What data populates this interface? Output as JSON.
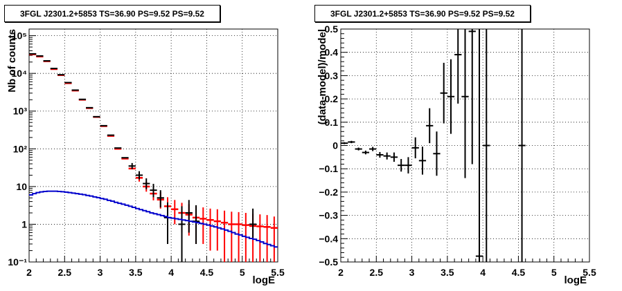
{
  "chart_data": [
    {
      "type": "line",
      "title": "3FGL J2301.2+5853 TS=36.90 PS=9.52 PS=9.52",
      "xlabel": "logE",
      "ylabel": "Nb of counts",
      "xlim": [
        2,
        5.5
      ],
      "ylim": [
        0.1,
        150000
      ],
      "yscale": "log",
      "grid": true,
      "xticks": [
        "2",
        "2.5",
        "3",
        "3.5",
        "4",
        "4.5",
        "5",
        "5.5"
      ],
      "yticks": [
        {
          "value": 0.1,
          "label": "10⁻¹"
        },
        {
          "value": 1,
          "label": "1"
        },
        {
          "value": 10,
          "label": "10"
        },
        {
          "value": 100,
          "label": "10²"
        },
        {
          "value": 1000,
          "label": "10³"
        },
        {
          "value": 10000,
          "label": "10⁴"
        },
        {
          "value": 100000,
          "label": "10⁵"
        }
      ],
      "series": [
        {
          "color": "#ff0000",
          "style": "steps-with-errors",
          "x": [
            2.05,
            2.15,
            2.25,
            2.35,
            2.45,
            2.55,
            2.65,
            2.75,
            2.85,
            2.95,
            3.05,
            3.15,
            3.25,
            3.35,
            3.45,
            3.55,
            3.65,
            3.75,
            3.85,
            3.95,
            4.05,
            4.15,
            4.25,
            4.35,
            4.45,
            4.55,
            4.65,
            4.75,
            4.85,
            4.95,
            5.05,
            5.15,
            5.25,
            5.35,
            5.45
          ],
          "y": [
            32000,
            28000,
            21000,
            13000,
            9000,
            5500,
            3500,
            2000,
            1200,
            700,
            400,
            220,
            100,
            55,
            30,
            17,
            10,
            6.5,
            4.5,
            3,
            2.5,
            2,
            1.8,
            1.5,
            1.4,
            1.3,
            1.2,
            1.1,
            1,
            1,
            0.95,
            0.9,
            0.88,
            0.85,
            0.8
          ],
          "err_low": [
            0,
            0,
            0,
            0,
            0,
            0,
            0,
            0,
            0,
            0,
            0,
            0,
            0,
            0,
            0,
            3.5,
            2.7,
            2.2,
            1.9,
            1.6,
            1.5,
            1.4,
            1.3,
            1.2,
            1.1,
            1.1,
            1.0,
            1.0,
            0.95,
            0.95,
            0.9,
            0.87,
            0.85,
            0.83,
            0.78
          ],
          "err_high": [
            0,
            0,
            0,
            0,
            0,
            0,
            0,
            0,
            0,
            0,
            0,
            0,
            0,
            0,
            0,
            4.5,
            3.5,
            3.0,
            2.6,
            2.2,
            1.9,
            1.7,
            1.6,
            1.5,
            1.4,
            1.3,
            1.3,
            1.2,
            1.15,
            1.1,
            1.05,
            1.0,
            0.95,
            0.9,
            0.8
          ]
        },
        {
          "color": "#000000",
          "style": "points-with-errors",
          "x": [
            2.05,
            2.15,
            2.25,
            2.35,
            2.45,
            2.55,
            2.65,
            2.75,
            2.85,
            2.95,
            3.05,
            3.15,
            3.25,
            3.35,
            3.45,
            3.55,
            3.65,
            3.75,
            3.85,
            3.95,
            4.15,
            4.25,
            4.35,
            5.15
          ],
          "y": [
            33000,
            29000,
            21500,
            13500,
            9200,
            5700,
            3600,
            2050,
            1230,
            710,
            410,
            230,
            105,
            58,
            35,
            20,
            12,
            8,
            5,
            1.5,
            1,
            2,
            1.2,
            1
          ],
          "err_low": [
            0,
            0,
            0,
            0,
            0,
            0,
            0,
            0,
            0,
            0,
            0,
            0,
            0,
            0,
            6,
            4.5,
            3.5,
            2.8,
            2.2,
            1.2,
            0.9,
            1.4,
            0.9,
            0.6
          ],
          "err_high": [
            0,
            0,
            0,
            0,
            0,
            0,
            0,
            0,
            0,
            0,
            0,
            0,
            0,
            0,
            7,
            5.5,
            4.5,
            3.8,
            3.0,
            2.3,
            2.0,
            2.4,
            2.0,
            1.6
          ]
        },
        {
          "color": "#0000cc",
          "style": "steps",
          "x": [
            2.0,
            2.05,
            2.1,
            2.15,
            2.2,
            2.25,
            2.3,
            2.35,
            2.4,
            2.45,
            2.5,
            2.55,
            2.6,
            2.65,
            2.7,
            2.75,
            2.8,
            2.85,
            2.9,
            2.95,
            3.0,
            3.05,
            3.1,
            3.15,
            3.2,
            3.25,
            3.3,
            3.35,
            3.4,
            3.45,
            3.5,
            3.55,
            3.6,
            3.65,
            3.7,
            3.75,
            3.8,
            3.85,
            3.9,
            3.95,
            4.0,
            4.05,
            4.1,
            4.15,
            4.2,
            4.25,
            4.3,
            4.35,
            4.4,
            4.45,
            4.5,
            4.55,
            4.6,
            4.65,
            4.7,
            4.75,
            4.8,
            4.85,
            4.9,
            4.95,
            5.0,
            5.05,
            5.1,
            5.15,
            5.2,
            5.25,
            5.3,
            5.35,
            5.4,
            5.45
          ],
          "y": [
            6.0,
            6.5,
            6.9,
            7.2,
            7.4,
            7.5,
            7.5,
            7.5,
            7.4,
            7.3,
            7.1,
            6.9,
            6.7,
            6.5,
            6.3,
            6.1,
            5.8,
            5.6,
            5.3,
            5.1,
            4.8,
            4.6,
            4.3,
            4.1,
            3.8,
            3.6,
            3.4,
            3.2,
            3.0,
            2.8,
            2.6,
            2.45,
            2.3,
            2.15,
            2.0,
            1.9,
            1.8,
            1.7,
            1.6,
            1.5,
            1.45,
            1.4,
            1.35,
            1.3,
            1.25,
            1.2,
            1.15,
            1.1,
            1.05,
            1.0,
            0.95,
            0.9,
            0.85,
            0.8,
            0.75,
            0.7,
            0.65,
            0.6,
            0.55,
            0.52,
            0.48,
            0.45,
            0.42,
            0.4,
            0.37,
            0.34,
            0.31,
            0.29,
            0.27,
            0.25
          ]
        }
      ]
    },
    {
      "type": "scatter",
      "title": "3FGL J2301.2+5853 TS=36.90 PS=9.52 PS=9.52",
      "xlabel": "logE",
      "ylabel": "(data-model)/model",
      "xlim": [
        2,
        5.5
      ],
      "ylim": [
        -0.5,
        0.5
      ],
      "yscale": "linear",
      "grid": true,
      "xticks": [
        "2",
        "2.5",
        "3",
        "3.5",
        "4",
        "4.5",
        "5",
        "5.5"
      ],
      "yticks": [
        "-0.5",
        "-0.4",
        "-0.3",
        "-0.2",
        "-0.1",
        "0",
        "0.1",
        "0.2",
        "0.3",
        "0.4",
        "0.5"
      ],
      "series": [
        {
          "color": "#000000",
          "style": "points-with-errors",
          "x": [
            2.05,
            2.15,
            2.25,
            2.35,
            2.45,
            2.55,
            2.65,
            2.75,
            2.85,
            2.95,
            3.05,
            3.15,
            3.25,
            3.35,
            3.45,
            3.55,
            3.65,
            3.75,
            3.85,
            3.95,
            4.05,
            4.55
          ],
          "y": [
            0.01,
            0.015,
            -0.015,
            -0.03,
            -0.015,
            -0.04,
            -0.045,
            -0.05,
            -0.085,
            -0.085,
            -0.01,
            -0.065,
            0.085,
            -0.035,
            0.225,
            0.21,
            0.39,
            0.21,
            0.49,
            -0.475,
            0,
            0
          ],
          "err": [
            0.004,
            0.005,
            0.006,
            0.008,
            0.009,
            0.012,
            0.015,
            0.02,
            0.027,
            0.035,
            0.045,
            0.06,
            0.075,
            0.095,
            0.13,
            0.16,
            0.21,
            0.35,
            0.57,
            0.98,
            1.2,
            1.2
          ]
        }
      ]
    }
  ]
}
